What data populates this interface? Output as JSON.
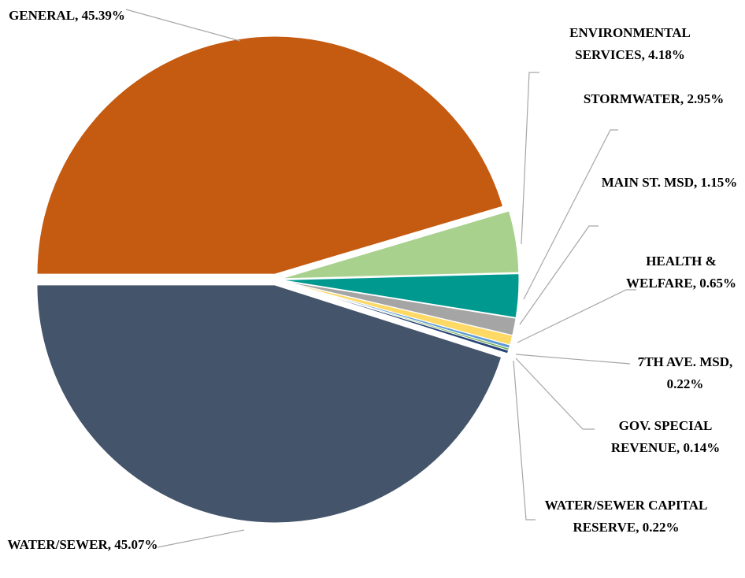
{
  "chart_data": {
    "type": "pie",
    "categories": [
      "GENERAL,",
      "ENVIRONMENTAL SERVICES,",
      "STORMWATER,",
      "MAIN ST. MSD,",
      "HEALTH & WELFARE,",
      "7TH AVE. MSD,",
      "GOV. SPECIAL REVENUE,",
      "WATER/SEWER CAPITAL RESERVE,",
      "WATER/SEWER,"
    ],
    "values": [
      45.39,
      4.18,
      2.95,
      1.15,
      0.65,
      0.22,
      0.14,
      0.22,
      45.07
    ],
    "value_labels": [
      "45.39%",
      "4.18%",
      "2.95%",
      "1.15%",
      "0.65%",
      "0.22%",
      "0.14%",
      "0.22%",
      "45.07%"
    ],
    "colors": [
      "#c55a11",
      "#a9d18e",
      "#00998f",
      "#a5a5a5",
      "#ffd966",
      "#5b9bd5",
      "#70ad47",
      "#264478",
      "#44546a"
    ]
  }
}
